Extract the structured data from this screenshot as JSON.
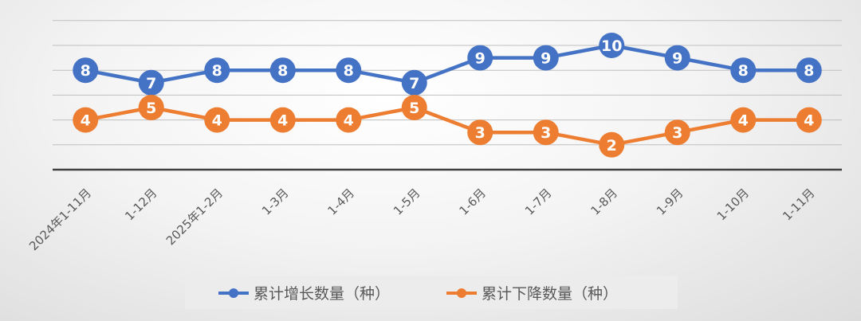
{
  "chart_data": {
    "type": "line",
    "categories": [
      "2024年1-11月",
      "1-12月",
      "2025年1-2月",
      "1-3月",
      "1-4月",
      "1-5月",
      "1-6月",
      "1-7月",
      "1-8月",
      "1-9月",
      "1-10月",
      "1-11月"
    ],
    "series": [
      {
        "name": "累计增长数量（种）",
        "values": [
          8,
          7,
          8,
          8,
          8,
          7,
          9,
          9,
          10,
          9,
          8,
          8
        ],
        "color": "#4472c4"
      },
      {
        "name": "累计下降数量（种）",
        "values": [
          4,
          5,
          4,
          4,
          4,
          5,
          3,
          3,
          2,
          3,
          4,
          4
        ],
        "color": "#ed7d31"
      }
    ],
    "ylim": [
      0,
      12
    ],
    "grid": true,
    "legend_position": "bottom",
    "data_labels": true
  }
}
